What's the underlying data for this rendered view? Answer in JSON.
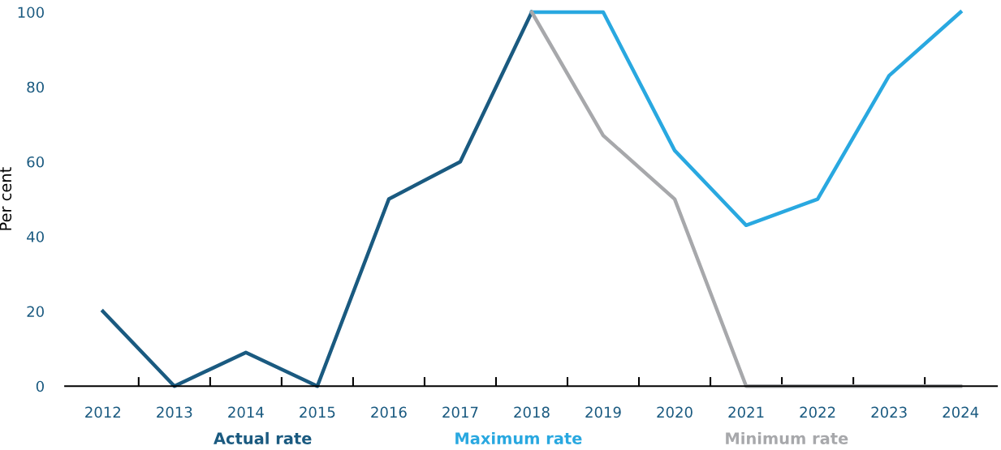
{
  "chart_data": {
    "type": "line",
    "ylabel": "Per cent",
    "categories": [
      "2012",
      "2013",
      "2014",
      "2015",
      "2016",
      "2017",
      "2018",
      "2019",
      "2020",
      "2021",
      "2022",
      "2023",
      "2024"
    ],
    "series": [
      {
        "name": "Actual rate",
        "color": "#1a5a80",
        "values": [
          20,
          0,
          9,
          0,
          50,
          60,
          100,
          null,
          null,
          null,
          null,
          null,
          null
        ]
      },
      {
        "name": "Maximum rate",
        "color": "#29a8e0",
        "values": [
          null,
          null,
          null,
          null,
          null,
          null,
          100,
          100,
          63,
          43,
          50,
          83,
          100
        ]
      },
      {
        "name": "Minimum rate",
        "color": "#a7a8ab",
        "values": [
          null,
          null,
          null,
          null,
          null,
          null,
          100,
          67,
          50,
          0,
          0,
          0,
          0
        ]
      }
    ],
    "ylim": [
      0,
      100
    ],
    "yticks": [
      0,
      20,
      40,
      60,
      80,
      100
    ],
    "grid": false,
    "legend": "bottom",
    "marker": "none",
    "line_style": "solid"
  }
}
